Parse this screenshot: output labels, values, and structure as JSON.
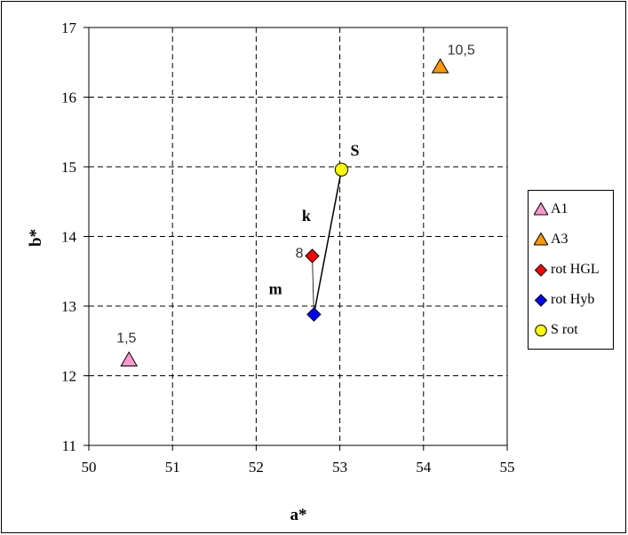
{
  "chart_data": {
    "type": "scatter",
    "xlabel": "a*",
    "ylabel": "b*",
    "xlim": [
      50,
      55
    ],
    "ylim": [
      11,
      17
    ],
    "xticks": [
      "50",
      "51",
      "52",
      "53",
      "54",
      "55"
    ],
    "yticks": [
      "11",
      "12",
      "13",
      "14",
      "15",
      "16",
      "17"
    ],
    "grid": true,
    "legend_position": "right",
    "series": [
      {
        "name": "A1",
        "marker": "triangle",
        "color": "#ff99cc",
        "points": [
          {
            "x": 50.48,
            "y": 12.22,
            "label": "1,5"
          }
        ]
      },
      {
        "name": "A3",
        "marker": "triangle",
        "color": "#ff9900",
        "points": [
          {
            "x": 54.2,
            "y": 16.43,
            "label": "10,5"
          }
        ]
      },
      {
        "name": "rot HGL",
        "marker": "diamond",
        "color": "#ff0000",
        "points": [
          {
            "x": 52.67,
            "y": 13.72,
            "label": "8"
          }
        ]
      },
      {
        "name": "rot Hyb",
        "marker": "diamond",
        "color": "#0000ff",
        "points": [
          {
            "x": 52.69,
            "y": 12.88,
            "label": ""
          }
        ]
      },
      {
        "name": "S rot",
        "marker": "circle",
        "color": "#ffff00",
        "points": [
          {
            "x": 53.02,
            "y": 14.96,
            "label": ""
          }
        ]
      }
    ],
    "annotations": [
      {
        "text": "S",
        "x": 53.18,
        "y": 15.16
      },
      {
        "text": "k",
        "x": 52.6,
        "y": 14.22
      },
      {
        "text": "m",
        "x": 52.23,
        "y": 13.17
      }
    ],
    "lines": [
      {
        "from": [
          52.67,
          13.72
        ],
        "to": [
          52.69,
          12.88
        ]
      },
      {
        "from": [
          52.69,
          12.88
        ],
        "to": [
          53.02,
          14.96
        ]
      }
    ]
  }
}
